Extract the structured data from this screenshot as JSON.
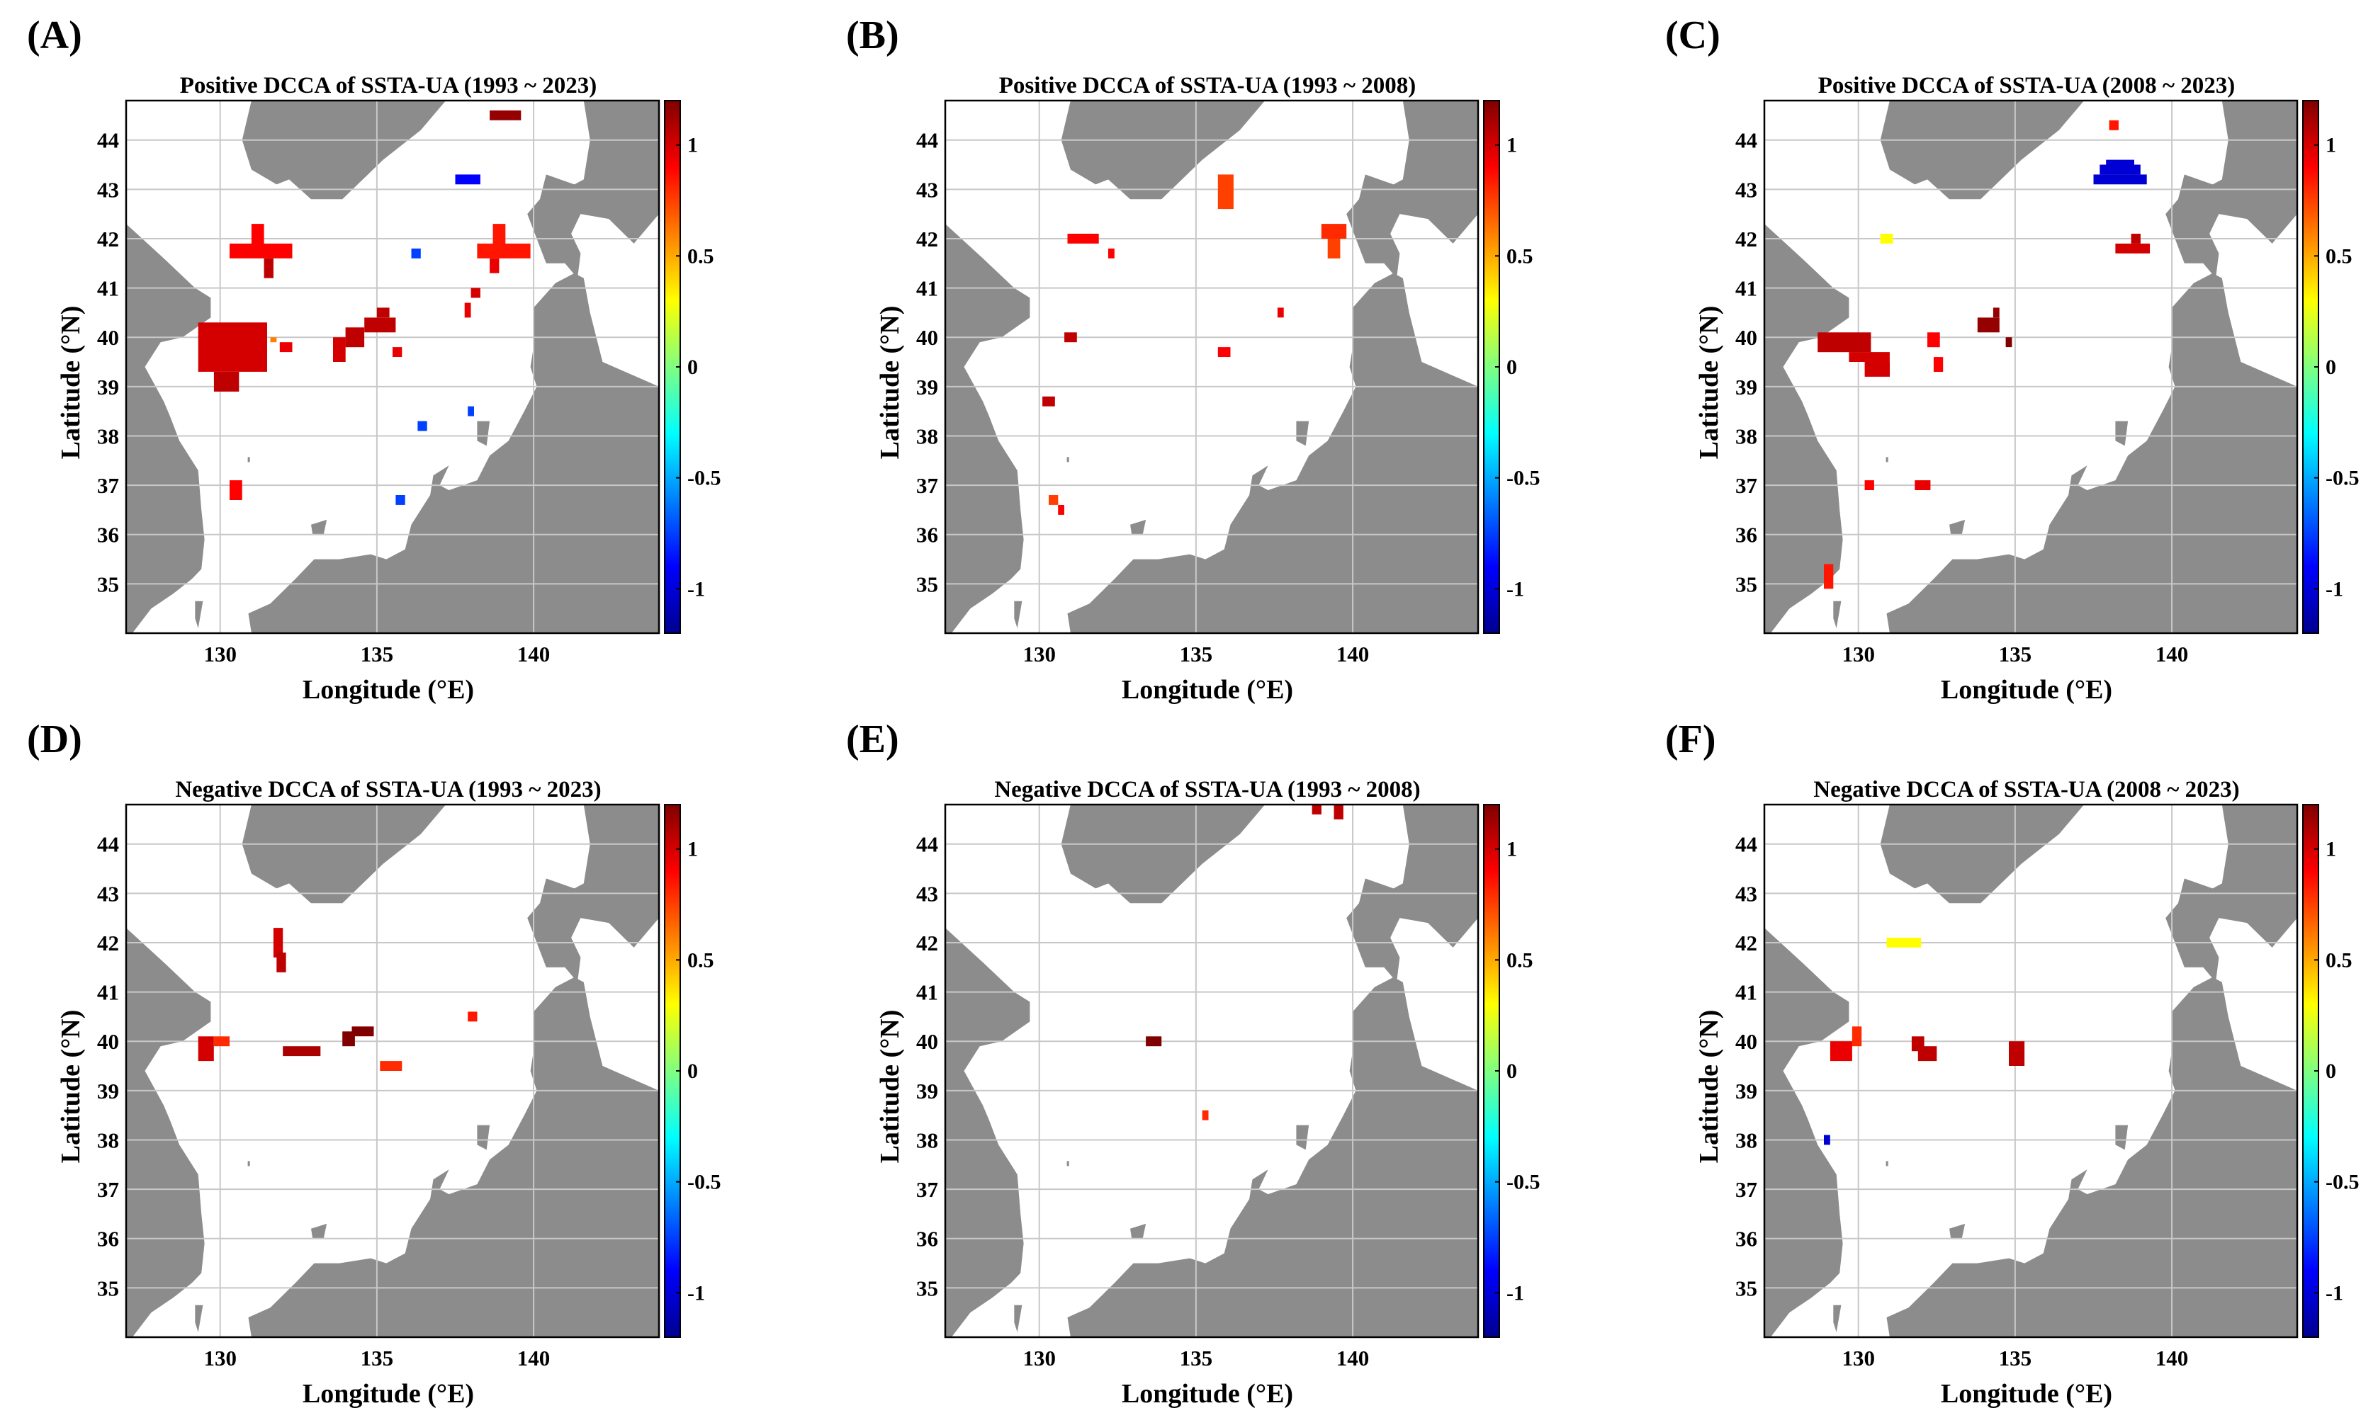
{
  "figure": {
    "xlabel": "Longitude (°E)",
    "ylabel": "Latitude (°N)",
    "colorbar": {
      "colormap": "jet",
      "range": [
        -1.2,
        1.2
      ],
      "ticks": [
        "1",
        "0.5",
        "0",
        "-0.5",
        "-1"
      ],
      "tick_values": [
        1,
        0.5,
        0,
        -0.5,
        -1
      ]
    }
  },
  "chart_data": [
    {
      "type": "heatmap",
      "panel_label": "(A)",
      "title": "Positive DCCA of SSTA-UA (1993 ~ 2023)",
      "xlabel": "Longitude (°E)",
      "ylabel": "Latitude (°N)",
      "xlim": [
        127,
        144
      ],
      "ylim": [
        34,
        44.8
      ],
      "xticks": [
        130,
        135,
        140
      ],
      "yticks": [
        35,
        36,
        37,
        38,
        39,
        40,
        41,
        42,
        43,
        44
      ],
      "cells": [
        {
          "lon0": 138.6,
          "lon1": 139.6,
          "lat0": 44.4,
          "lat1": 44.6,
          "value": 1.15
        },
        {
          "lon0": 137.5,
          "lon1": 138.3,
          "lat0": 43.1,
          "lat1": 43.3,
          "value": -0.9
        },
        {
          "lon0": 131.0,
          "lon1": 131.4,
          "lat0": 41.9,
          "lat1": 42.3,
          "value": 0.9
        },
        {
          "lon0": 130.3,
          "lon1": 132.3,
          "lat0": 41.6,
          "lat1": 41.9,
          "value": 0.9
        },
        {
          "lon0": 131.4,
          "lon1": 131.7,
          "lat0": 41.2,
          "lat1": 41.6,
          "value": 1.05
        },
        {
          "lon0": 136.1,
          "lon1": 136.4,
          "lat0": 41.6,
          "lat1": 41.8,
          "value": -0.75
        },
        {
          "lon0": 138.7,
          "lon1": 139.1,
          "lat0": 41.9,
          "lat1": 42.3,
          "value": 0.85
        },
        {
          "lon0": 138.2,
          "lon1": 139.9,
          "lat0": 41.6,
          "lat1": 41.9,
          "value": 0.85
        },
        {
          "lon0": 138.6,
          "lon1": 138.9,
          "lat0": 41.3,
          "lat1": 41.6,
          "value": 0.95
        },
        {
          "lon0": 138.0,
          "lon1": 138.3,
          "lat0": 40.8,
          "lat1": 41.0,
          "value": 1.0
        },
        {
          "lon0": 137.8,
          "lon1": 138.0,
          "lat0": 40.4,
          "lat1": 40.7,
          "value": 0.95
        },
        {
          "lon0": 129.3,
          "lon1": 131.5,
          "lat0": 39.3,
          "lat1": 40.3,
          "value": 1.0
        },
        {
          "lon0": 129.8,
          "lon1": 130.6,
          "lat0": 38.9,
          "lat1": 39.3,
          "value": 1.05
        },
        {
          "lon0": 131.9,
          "lon1": 132.3,
          "lat0": 39.7,
          "lat1": 39.9,
          "value": 0.95
        },
        {
          "lon0": 131.6,
          "lon1": 131.8,
          "lat0": 39.9,
          "lat1": 40.0,
          "value": 0.6
        },
        {
          "lon0": 133.6,
          "lon1": 134.0,
          "lat0": 39.5,
          "lat1": 40.0,
          "value": 1.0
        },
        {
          "lon0": 134.0,
          "lon1": 134.6,
          "lat0": 39.8,
          "lat1": 40.2,
          "value": 1.05
        },
        {
          "lon0": 134.6,
          "lon1": 135.6,
          "lat0": 40.1,
          "lat1": 40.4,
          "value": 1.05
        },
        {
          "lon0": 135.0,
          "lon1": 135.4,
          "lat0": 40.4,
          "lat1": 40.6,
          "value": 1.05
        },
        {
          "lon0": 135.5,
          "lon1": 135.8,
          "lat0": 39.6,
          "lat1": 39.8,
          "value": 0.95
        },
        {
          "lon0": 136.3,
          "lon1": 136.6,
          "lat0": 38.1,
          "lat1": 38.3,
          "value": -0.75
        },
        {
          "lon0": 137.9,
          "lon1": 138.1,
          "lat0": 38.4,
          "lat1": 38.6,
          "value": -0.75
        },
        {
          "lon0": 135.6,
          "lon1": 135.9,
          "lat0": 36.6,
          "lat1": 36.8,
          "value": -0.75
        },
        {
          "lon0": 130.3,
          "lon1": 130.7,
          "lat0": 36.7,
          "lat1": 37.1,
          "value": 0.9
        }
      ]
    },
    {
      "type": "heatmap",
      "panel_label": "(B)",
      "title": "Positive DCCA of SSTA-UA (1993 ~ 2008)",
      "xlabel": "Longitude (°E)",
      "ylabel": "Latitude (°N)",
      "xlim": [
        127,
        144
      ],
      "ylim": [
        34,
        44.8
      ],
      "xticks": [
        130,
        135,
        140
      ],
      "yticks": [
        35,
        36,
        37,
        38,
        39,
        40,
        41,
        42,
        43,
        44
      ],
      "cells": [
        {
          "lon0": 135.7,
          "lon1": 136.2,
          "lat0": 42.6,
          "lat1": 43.3,
          "value": 0.75
        },
        {
          "lon0": 139.0,
          "lon1": 139.8,
          "lat0": 42.0,
          "lat1": 42.3,
          "value": 0.8
        },
        {
          "lon0": 139.2,
          "lon1": 139.6,
          "lat0": 41.6,
          "lat1": 42.0,
          "value": 0.75
        },
        {
          "lon0": 130.9,
          "lon1": 131.9,
          "lat0": 41.9,
          "lat1": 42.1,
          "value": 0.9
        },
        {
          "lon0": 132.2,
          "lon1": 132.4,
          "lat0": 41.6,
          "lat1": 41.8,
          "value": 0.9
        },
        {
          "lon0": 137.6,
          "lon1": 137.8,
          "lat0": 40.4,
          "lat1": 40.6,
          "value": 0.95
        },
        {
          "lon0": 130.8,
          "lon1": 131.2,
          "lat0": 39.9,
          "lat1": 40.1,
          "value": 1.05
        },
        {
          "lon0": 135.7,
          "lon1": 136.1,
          "lat0": 39.6,
          "lat1": 39.8,
          "value": 0.9
        },
        {
          "lon0": 130.1,
          "lon1": 130.5,
          "lat0": 38.6,
          "lat1": 38.8,
          "value": 1.05
        },
        {
          "lon0": 130.3,
          "lon1": 130.6,
          "lat0": 36.6,
          "lat1": 36.8,
          "value": 0.75
        },
        {
          "lon0": 130.6,
          "lon1": 130.8,
          "lat0": 36.4,
          "lat1": 36.6,
          "value": 0.9
        }
      ]
    },
    {
      "type": "heatmap",
      "panel_label": "(C)",
      "title": "Positive DCCA of SSTA-UA (2008 ~ 2023)",
      "xlabel": "Longitude (°E)",
      "ylabel": "Latitude (°N)",
      "xlim": [
        127,
        144
      ],
      "ylim": [
        34,
        44.8
      ],
      "xticks": [
        130,
        135,
        140
      ],
      "yticks": [
        35,
        36,
        37,
        38,
        39,
        40,
        41,
        42,
        43,
        44
      ],
      "cells": [
        {
          "lon0": 138.0,
          "lon1": 138.3,
          "lat0": 44.2,
          "lat1": 44.4,
          "value": 0.85
        },
        {
          "lon0": 137.9,
          "lon1": 138.8,
          "lat0": 43.5,
          "lat1": 43.6,
          "value": -1.0
        },
        {
          "lon0": 137.7,
          "lon1": 139.0,
          "lat0": 43.3,
          "lat1": 43.5,
          "value": -1.0
        },
        {
          "lon0": 137.5,
          "lon1": 139.2,
          "lat0": 43.1,
          "lat1": 43.3,
          "value": -1.0
        },
        {
          "lon0": 130.7,
          "lon1": 131.1,
          "lat0": 41.9,
          "lat1": 42.1,
          "value": 0.3
        },
        {
          "lon0": 138.7,
          "lon1": 139.0,
          "lat0": 41.9,
          "lat1": 42.1,
          "value": 1.05
        },
        {
          "lon0": 138.2,
          "lon1": 139.3,
          "lat0": 41.7,
          "lat1": 41.9,
          "value": 1.0
        },
        {
          "lon0": 128.7,
          "lon1": 130.4,
          "lat0": 39.7,
          "lat1": 40.1,
          "value": 1.05
        },
        {
          "lon0": 129.7,
          "lon1": 131.0,
          "lat0": 39.5,
          "lat1": 39.7,
          "value": 1.0
        },
        {
          "lon0": 130.2,
          "lon1": 131.0,
          "lat0": 39.2,
          "lat1": 39.5,
          "value": 1.0
        },
        {
          "lon0": 132.2,
          "lon1": 132.6,
          "lat0": 39.8,
          "lat1": 40.1,
          "value": 0.9
        },
        {
          "lon0": 132.4,
          "lon1": 132.7,
          "lat0": 39.3,
          "lat1": 39.6,
          "value": 0.9
        },
        {
          "lon0": 133.8,
          "lon1": 134.5,
          "lat0": 40.1,
          "lat1": 40.4,
          "value": 1.15
        },
        {
          "lon0": 134.3,
          "lon1": 134.5,
          "lat0": 40.4,
          "lat1": 40.6,
          "value": 1.15
        },
        {
          "lon0": 134.7,
          "lon1": 134.9,
          "lat0": 39.8,
          "lat1": 40.0,
          "value": 1.2
        },
        {
          "lon0": 130.2,
          "lon1": 130.5,
          "lat0": 36.9,
          "lat1": 37.1,
          "value": 0.9
        },
        {
          "lon0": 131.8,
          "lon1": 132.3,
          "lat0": 36.9,
          "lat1": 37.1,
          "value": 0.95
        },
        {
          "lon0": 128.9,
          "lon1": 129.2,
          "lat0": 34.9,
          "lat1": 35.4,
          "value": 0.85
        }
      ]
    },
    {
      "type": "heatmap",
      "panel_label": "(D)",
      "title": "Negative DCCA of SSTA-UA (1993 ~ 2023)",
      "xlabel": "Longitude (°E)",
      "ylabel": "Latitude (°N)",
      "xlim": [
        127,
        144
      ],
      "ylim": [
        34,
        44.8
      ],
      "xticks": [
        130,
        135,
        140
      ],
      "yticks": [
        35,
        36,
        37,
        38,
        39,
        40,
        41,
        42,
        43,
        44
      ],
      "cells": [
        {
          "lon0": 131.7,
          "lon1": 132.0,
          "lat0": 41.7,
          "lat1": 42.3,
          "value": 1.0
        },
        {
          "lon0": 131.8,
          "lon1": 132.1,
          "lat0": 41.4,
          "lat1": 41.8,
          "value": 1.05
        },
        {
          "lon0": 129.3,
          "lon1": 129.8,
          "lat0": 39.6,
          "lat1": 40.1,
          "value": 1.0
        },
        {
          "lon0": 129.8,
          "lon1": 130.3,
          "lat0": 39.9,
          "lat1": 40.1,
          "value": 0.8
        },
        {
          "lon0": 132.0,
          "lon1": 133.2,
          "lat0": 39.7,
          "lat1": 39.9,
          "value": 1.1
        },
        {
          "lon0": 133.9,
          "lon1": 134.3,
          "lat0": 39.9,
          "lat1": 40.2,
          "value": 1.2
        },
        {
          "lon0": 134.2,
          "lon1": 134.9,
          "lat0": 40.1,
          "lat1": 40.3,
          "value": 1.2
        },
        {
          "lon0": 135.1,
          "lon1": 135.8,
          "lat0": 39.4,
          "lat1": 39.6,
          "value": 0.8
        },
        {
          "lon0": 137.9,
          "lon1": 138.2,
          "lat0": 40.4,
          "lat1": 40.6,
          "value": 0.85
        }
      ]
    },
    {
      "type": "heatmap",
      "panel_label": "(E)",
      "title": "Negative DCCA of SSTA-UA (1993 ~ 2008)",
      "xlabel": "Longitude (°E)",
      "ylabel": "Latitude (°N)",
      "xlim": [
        127,
        144
      ],
      "ylim": [
        34,
        44.8
      ],
      "xticks": [
        130,
        135,
        140
      ],
      "yticks": [
        35,
        36,
        37,
        38,
        39,
        40,
        41,
        42,
        43,
        44
      ],
      "cells": [
        {
          "lon0": 138.7,
          "lon1": 139.0,
          "lat0": 44.6,
          "lat1": 44.8,
          "value": 1.05
        },
        {
          "lon0": 139.4,
          "lon1": 139.7,
          "lat0": 44.5,
          "lat1": 44.8,
          "value": 1.05
        },
        {
          "lon0": 133.4,
          "lon1": 133.9,
          "lat0": 39.9,
          "lat1": 40.1,
          "value": 1.2
        },
        {
          "lon0": 135.2,
          "lon1": 135.4,
          "lat0": 38.4,
          "lat1": 38.6,
          "value": 0.8
        }
      ]
    },
    {
      "type": "heatmap",
      "panel_label": "(F)",
      "title": "Negative DCCA of SSTA-UA (2008 ~ 2023)",
      "xlabel": "Longitude (°E)",
      "ylabel": "Latitude (°N)",
      "xlim": [
        127,
        144
      ],
      "ylim": [
        34,
        44.8
      ],
      "xticks": [
        130,
        135,
        140
      ],
      "yticks": [
        35,
        36,
        37,
        38,
        39,
        40,
        41,
        42,
        43,
        44
      ],
      "cells": [
        {
          "lon0": 130.9,
          "lon1": 132.0,
          "lat0": 41.9,
          "lat1": 42.1,
          "value": 0.3
        },
        {
          "lon0": 129.1,
          "lon1": 129.8,
          "lat0": 39.6,
          "lat1": 40.0,
          "value": 0.95
        },
        {
          "lon0": 129.8,
          "lon1": 130.1,
          "lat0": 39.9,
          "lat1": 40.3,
          "value": 0.8
        },
        {
          "lon0": 131.7,
          "lon1": 132.1,
          "lat0": 39.8,
          "lat1": 40.1,
          "value": 1.05
        },
        {
          "lon0": 131.9,
          "lon1": 132.5,
          "lat0": 39.6,
          "lat1": 39.9,
          "value": 1.05
        },
        {
          "lon0": 134.8,
          "lon1": 135.3,
          "lat0": 39.5,
          "lat1": 40.0,
          "value": 1.05
        },
        {
          "lon0": 128.9,
          "lon1": 129.1,
          "lat0": 37.9,
          "lat1": 38.1,
          "value": -1.0
        }
      ]
    }
  ]
}
